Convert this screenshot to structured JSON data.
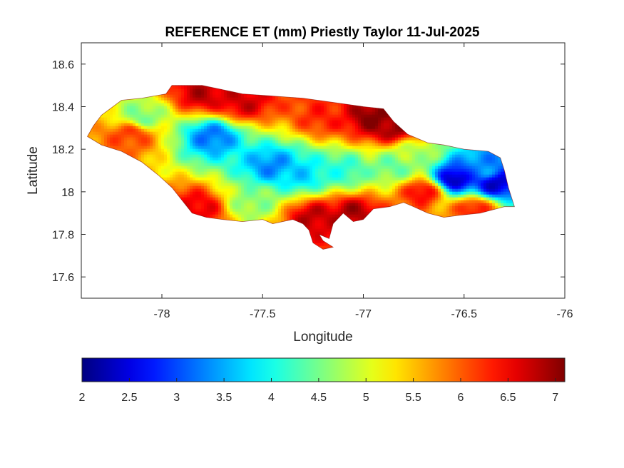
{
  "chart_data": {
    "type": "heatmap",
    "title": "REFERENCE ET (mm) Priestly Taylor 11-Jul-2025",
    "xlabel": "Longitude",
    "ylabel": "Latitude",
    "xlim": [
      -78.4,
      -76
    ],
    "ylim": [
      17.5,
      18.7
    ],
    "xticks": [
      -78,
      -77.5,
      -77,
      -76.5,
      -76
    ],
    "yticks": [
      17.6,
      17.8,
      18,
      18.2,
      18.4,
      18.6
    ],
    "xtick_labels": [
      "-78",
      "-77.5",
      "-77",
      "-76.5",
      "-76"
    ],
    "ytick_labels": [
      "17.6",
      "17.8",
      "18",
      "18.2",
      "18.4",
      "18.6"
    ],
    "colorbar": {
      "colormap": "jet",
      "range": [
        2,
        7.1
      ],
      "ticks": [
        2,
        2.5,
        3,
        3.5,
        4,
        4.5,
        5,
        5.5,
        6,
        6.5,
        7
      ],
      "tick_labels": [
        "2",
        "2.5",
        "3",
        "3.5",
        "4",
        "4.5",
        "5",
        "5.5",
        "6",
        "6.5",
        "7"
      ],
      "orientation": "horizontal",
      "placement": "bottom"
    },
    "grid": false,
    "outline": [
      [
        -78.37,
        18.26
      ],
      [
        -78.34,
        18.31
      ],
      [
        -78.3,
        18.36
      ],
      [
        -78.2,
        18.43
      ],
      [
        -78.1,
        18.44
      ],
      [
        -77.98,
        18.46
      ],
      [
        -77.95,
        18.5
      ],
      [
        -77.8,
        18.5
      ],
      [
        -77.7,
        18.48
      ],
      [
        -77.6,
        18.46
      ],
      [
        -77.45,
        18.45
      ],
      [
        -77.3,
        18.44
      ],
      [
        -77.15,
        18.42
      ],
      [
        -77.0,
        18.4
      ],
      [
        -76.9,
        18.39
      ],
      [
        -76.85,
        18.33
      ],
      [
        -76.78,
        18.27
      ],
      [
        -76.68,
        18.23
      ],
      [
        -76.6,
        18.22
      ],
      [
        -76.5,
        18.2
      ],
      [
        -76.38,
        18.19
      ],
      [
        -76.32,
        18.16
      ],
      [
        -76.3,
        18.1
      ],
      [
        -76.28,
        18.02
      ],
      [
        -76.25,
        17.93
      ],
      [
        -76.3,
        17.93
      ],
      [
        -76.42,
        17.9
      ],
      [
        -76.52,
        17.89
      ],
      [
        -76.6,
        17.88
      ],
      [
        -76.68,
        17.9
      ],
      [
        -76.75,
        17.93
      ],
      [
        -76.8,
        17.95
      ],
      [
        -76.87,
        17.93
      ],
      [
        -76.95,
        17.92
      ],
      [
        -77.0,
        17.87
      ],
      [
        -77.05,
        17.86
      ],
      [
        -77.1,
        17.9
      ],
      [
        -77.15,
        17.85
      ],
      [
        -77.17,
        17.78
      ],
      [
        -77.22,
        17.8
      ],
      [
        -77.2,
        17.77
      ],
      [
        -77.15,
        17.74
      ],
      [
        -77.2,
        17.73
      ],
      [
        -77.25,
        17.76
      ],
      [
        -77.27,
        17.82
      ],
      [
        -77.3,
        17.85
      ],
      [
        -77.35,
        17.87
      ],
      [
        -77.45,
        17.85
      ],
      [
        -77.5,
        17.87
      ],
      [
        -77.6,
        17.86
      ],
      [
        -77.7,
        17.87
      ],
      [
        -77.78,
        17.88
      ],
      [
        -77.85,
        17.9
      ],
      [
        -77.9,
        17.96
      ],
      [
        -77.95,
        18.02
      ],
      [
        -78.02,
        18.08
      ],
      [
        -78.1,
        18.14
      ],
      [
        -78.2,
        18.19
      ],
      [
        -78.3,
        18.22
      ],
      [
        -78.37,
        18.26
      ]
    ],
    "field": {
      "base": 5.6,
      "hotspots": [
        {
          "lon": -76.95,
          "lat": 18.35,
          "value": 7.1
        },
        {
          "lon": -76.85,
          "lat": 18.3,
          "value": 7.0
        },
        {
          "lon": -77.8,
          "lat": 18.46,
          "value": 6.8
        },
        {
          "lon": -77.6,
          "lat": 18.42,
          "value": 6.7
        },
        {
          "lon": -77.25,
          "lat": 17.88,
          "value": 6.8
        },
        {
          "lon": -77.05,
          "lat": 17.9,
          "value": 6.9
        },
        {
          "lon": -77.82,
          "lat": 17.92,
          "value": 6.6
        },
        {
          "lon": -76.7,
          "lat": 18.0,
          "value": 6.6
        },
        {
          "lon": -78.15,
          "lat": 18.27,
          "value": 6.2
        },
        {
          "lon": -76.45,
          "lat": 17.92,
          "value": 6.4
        },
        {
          "lon": -77.2,
          "lat": 18.35,
          "value": 6.3
        },
        {
          "lon": -77.45,
          "lat": 18.12,
          "value": 3.3
        },
        {
          "lon": -77.3,
          "lat": 18.08,
          "value": 3.7
        },
        {
          "lon": -77.75,
          "lat": 18.26,
          "value": 3.2
        },
        {
          "lon": -76.55,
          "lat": 18.06,
          "value": 2.2
        },
        {
          "lon": -76.35,
          "lat": 18.04,
          "value": 2.3
        },
        {
          "lon": -76.4,
          "lat": 18.1,
          "value": 3.4
        },
        {
          "lon": -77.1,
          "lat": 18.1,
          "value": 4.1
        },
        {
          "lon": -76.85,
          "lat": 18.12,
          "value": 4.4
        },
        {
          "lon": -78.1,
          "lat": 18.35,
          "value": 4.5
        },
        {
          "lon": -77.55,
          "lat": 17.95,
          "value": 4.6
        },
        {
          "lon": -76.75,
          "lat": 18.18,
          "value": 4.8
        }
      ]
    }
  }
}
